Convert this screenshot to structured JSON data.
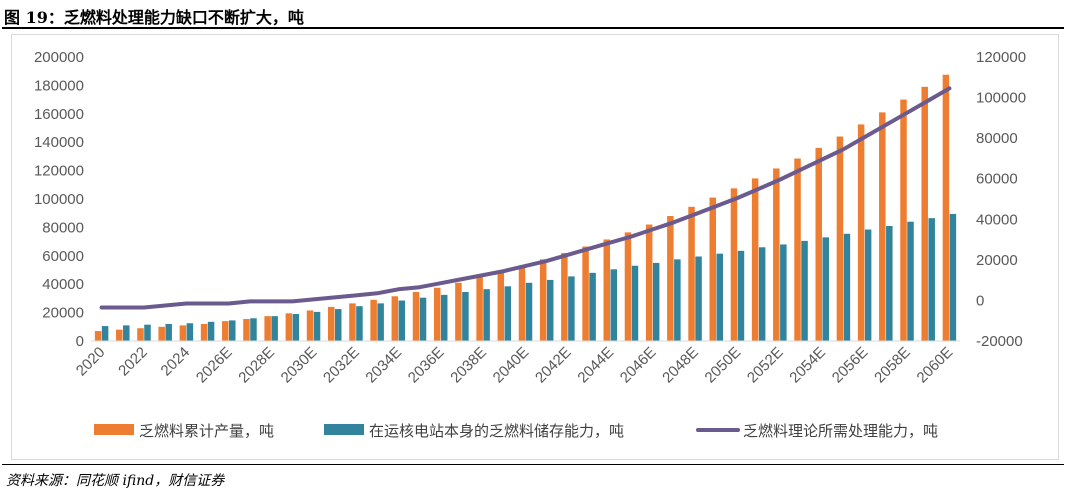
{
  "header": {
    "title": "图 19：乏燃料处理能力缺口不断扩大，吨"
  },
  "footer": {
    "source": "资料来源：同花顺 ifind，财信证券"
  },
  "colors": {
    "orange": "#ed7d31",
    "teal": "#31849b",
    "purple": "#6b5a8e",
    "grid": "#d9d9d9",
    "axis": "#595959"
  },
  "chart_data": {
    "type": "bar",
    "title": "乏燃料处理能力缺口不断扩大，吨",
    "categories": [
      "2020",
      "2021",
      "2022",
      "2023",
      "2024",
      "2025E",
      "2026E",
      "2027E",
      "2028E",
      "2029E",
      "2030E",
      "2031E",
      "2032E",
      "2033E",
      "2034E",
      "2035E",
      "2036E",
      "2037E",
      "2038E",
      "2039E",
      "2040E",
      "2041E",
      "2042E",
      "2043E",
      "2044E",
      "2045E",
      "2046E",
      "2047E",
      "2048E",
      "2049E",
      "2050E",
      "2051E",
      "2052E",
      "2053E",
      "2054E",
      "2055E",
      "2056E",
      "2057E",
      "2058E",
      "2059E",
      "2060E"
    ],
    "x_tick_labels": [
      "2020",
      "2022",
      "2024",
      "2026E",
      "2028E",
      "2030E",
      "2032E",
      "2034E",
      "2036E",
      "2038E",
      "2040E",
      "2042E",
      "2044E",
      "2046E",
      "2048E",
      "2050E",
      "2052E",
      "2054E",
      "2056E",
      "2058E",
      "2060E"
    ],
    "left_axis": {
      "ylim": [
        0,
        200000
      ],
      "ticks": [
        "0",
        "20000",
        "40000",
        "60000",
        "80000",
        "100000",
        "120000",
        "140000",
        "160000",
        "180000",
        "200000"
      ]
    },
    "right_axis": {
      "ylim": [
        -20000,
        120000
      ],
      "ticks": [
        "-20000",
        "0",
        "20000",
        "40000",
        "60000",
        "80000",
        "100000",
        "120000"
      ]
    },
    "series": [
      {
        "name": "乏燃料累计产量，吨",
        "kind": "bar",
        "axis": "left",
        "values": [
          7000,
          8000,
          9000,
          10000,
          11000,
          12000,
          14000,
          15500,
          17500,
          19500,
          21500,
          24000,
          26500,
          29000,
          31500,
          34500,
          37500,
          41000,
          45000,
          49000,
          53000,
          57500,
          62000,
          66500,
          71500,
          76500,
          82000,
          88000,
          94500,
          101000,
          107500,
          114500,
          121500,
          128500,
          136000,
          144000,
          152500,
          161000,
          170000,
          179000,
          187500
        ]
      },
      {
        "name": "在运核电站本身的乏燃料储存能力，吨",
        "kind": "bar",
        "axis": "left",
        "values": [
          10500,
          11000,
          11500,
          12000,
          12500,
          13500,
          14500,
          16000,
          17500,
          19000,
          20500,
          22500,
          24500,
          26500,
          28500,
          30500,
          32500,
          34500,
          36500,
          38500,
          41000,
          43000,
          45500,
          48000,
          50500,
          53000,
          55000,
          57500,
          59500,
          61500,
          63500,
          66000,
          68000,
          70500,
          73000,
          75500,
          78500,
          81000,
          84000,
          86500,
          89500
        ]
      },
      {
        "name": "乏燃料理论所需处理能力，吨",
        "kind": "line",
        "axis": "right",
        "values": [
          -3500,
          -3500,
          -3500,
          -2500,
          -1500,
          -1500,
          -1500,
          -500,
          -500,
          -500,
          500,
          1500,
          2500,
          3500,
          5500,
          6500,
          8500,
          10500,
          12500,
          14500,
          17000,
          19500,
          22500,
          25500,
          28500,
          31500,
          35000,
          38500,
          42500,
          46500,
          50500,
          55000,
          59500,
          64500,
          69500,
          74500,
          80500,
          86500,
          92500,
          98500,
          104500
        ]
      }
    ],
    "legend": [
      "乏燃料累计产量，吨",
      "在运核电站本身的乏燃料储存能力，吨",
      "乏燃料理论所需处理能力，吨"
    ],
    "legend_position": "bottom",
    "grid": false
  }
}
